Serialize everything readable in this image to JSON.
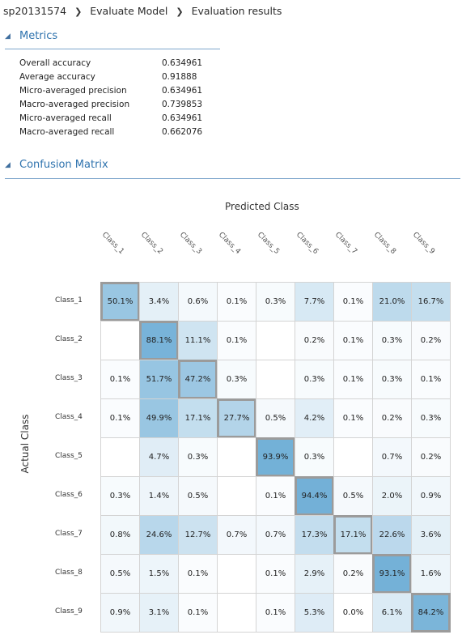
{
  "breadcrumb": [
    "sp20131574",
    "Evaluate Model",
    "Evaluation results"
  ],
  "metrics_section": {
    "title": "Metrics",
    "rows": [
      {
        "label": "Overall accuracy",
        "value": "0.634961"
      },
      {
        "label": "Average accuracy",
        "value": "0.91888"
      },
      {
        "label": "Micro-averaged precision",
        "value": "0.634961"
      },
      {
        "label": "Macro-averaged precision",
        "value": "0.739853"
      },
      {
        "label": "Micro-averaged recall",
        "value": "0.634961"
      },
      {
        "label": "Macro-averaged recall",
        "value": "0.662076"
      }
    ]
  },
  "confusion_section": {
    "title": "Confusion Matrix",
    "predicted_label": "Predicted Class",
    "actual_label": "Actual Class"
  },
  "icons": {
    "section_toggle": "triangle-down-icon",
    "breadcrumb_separator": "chevron-right-icon"
  },
  "colors": {
    "accent": "#2f73ae",
    "heat_low": "#ffffff",
    "heat_high": "#6faed6",
    "diag_border": "#9b9b9b"
  },
  "chart_data": {
    "type": "heatmap",
    "xlabel": "Predicted Class",
    "ylabel": "Actual Class",
    "x_categories": [
      "Class_1",
      "Class_2",
      "Class_3",
      "Class_4",
      "Class_5",
      "Class_6",
      "Class_7",
      "Class_8",
      "Class_9"
    ],
    "y_categories": [
      "Class_1",
      "Class_2",
      "Class_3",
      "Class_4",
      "Class_5",
      "Class_6",
      "Class_7",
      "Class_8",
      "Class_9"
    ],
    "unit": "%",
    "values": [
      [
        50.1,
        3.4,
        0.6,
        0.1,
        0.3,
        7.7,
        0.1,
        21.0,
        16.7
      ],
      [
        null,
        88.1,
        11.1,
        0.1,
        null,
        0.2,
        0.1,
        0.3,
        0.2
      ],
      [
        0.1,
        51.7,
        47.2,
        0.3,
        null,
        0.3,
        0.1,
        0.3,
        0.1
      ],
      [
        0.1,
        49.9,
        17.1,
        27.7,
        0.5,
        4.2,
        0.1,
        0.2,
        0.3
      ],
      [
        null,
        4.7,
        0.3,
        null,
        93.9,
        0.3,
        null,
        0.7,
        0.2
      ],
      [
        0.3,
        1.4,
        0.5,
        null,
        0.1,
        94.4,
        0.5,
        2.0,
        0.9
      ],
      [
        0.8,
        24.6,
        12.7,
        0.7,
        0.7,
        17.3,
        17.1,
        22.6,
        3.6
      ],
      [
        0.5,
        1.5,
        0.1,
        null,
        0.1,
        2.9,
        0.2,
        93.1,
        1.6
      ],
      [
        0.9,
        3.1,
        0.1,
        null,
        0.1,
        5.3,
        0.0,
        6.1,
        84.2
      ]
    ],
    "labels": [
      [
        "50.1%",
        "3.4%",
        "0.6%",
        "0.1%",
        "0.3%",
        "7.7%",
        "0.1%",
        "21.0%",
        "16.7%"
      ],
      [
        "",
        "88.1%",
        "11.1%",
        "0.1%",
        "",
        "0.2%",
        "0.1%",
        "0.3%",
        "0.2%"
      ],
      [
        "0.1%",
        "51.7%",
        "47.2%",
        "0.3%",
        "",
        "0.3%",
        "0.1%",
        "0.3%",
        "0.1%"
      ],
      [
        "0.1%",
        "49.9%",
        "17.1%",
        "27.7%",
        "0.5%",
        "4.2%",
        "0.1%",
        "0.2%",
        "0.3%"
      ],
      [
        "",
        "4.7%",
        "0.3%",
        "",
        "93.9%",
        "0.3%",
        "",
        "0.7%",
        "0.2%"
      ],
      [
        "0.3%",
        "1.4%",
        "0.5%",
        "",
        "0.1%",
        "94.4%",
        "0.5%",
        "2.0%",
        "0.9%"
      ],
      [
        "0.8%",
        "24.6%",
        "12.7%",
        "0.7%",
        "0.7%",
        "17.3%",
        "17.1%",
        "22.6%",
        "3.6%"
      ],
      [
        "0.5%",
        "1.5%",
        "0.1%",
        "",
        "0.1%",
        "2.9%",
        "0.2%",
        "93.1%",
        "1.6%"
      ],
      [
        "0.9%",
        "3.1%",
        "0.1%",
        "",
        "0.1%",
        "5.3%",
        "0.0%",
        "6.1%",
        "84.2%"
      ]
    ],
    "diagonal_highlight": true
  }
}
